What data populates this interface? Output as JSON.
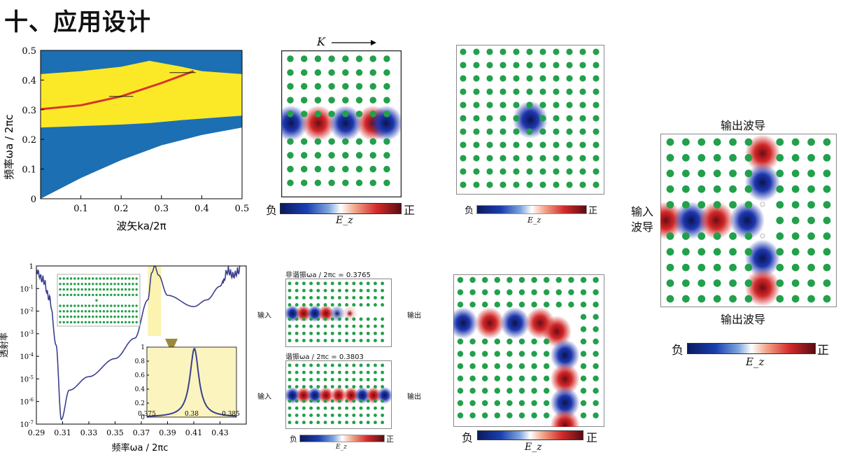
{
  "page": {
    "title": "十、应用设计"
  },
  "band_chart": {
    "type": "area",
    "xlabel": "波矢ka/2π",
    "ylabel": "频率ωa / 2πc",
    "xlim": [
      0,
      0.5
    ],
    "ylim": [
      0,
      0.5
    ],
    "x_ticks": [
      "0.1",
      "0.2",
      "0.3",
      "0.4",
      "0.5"
    ],
    "y_ticks": [
      "0",
      "0.1",
      "0.2",
      "0.3",
      "0.4",
      "0.5"
    ],
    "bandgap_band": {
      "x": [
        0,
        0.1,
        0.2,
        0.27,
        0.35,
        0.4,
        0.5
      ],
      "lower": [
        0.24,
        0.245,
        0.25,
        0.255,
        0.265,
        0.27,
        0.28
      ],
      "upper": [
        0.42,
        0.43,
        0.445,
        0.465,
        0.445,
        0.43,
        0.42
      ]
    },
    "light_cone": {
      "x": [
        0,
        0.1,
        0.2,
        0.3,
        0.4,
        0.5
      ],
      "y": [
        0,
        0.07,
        0.13,
        0.18,
        0.215,
        0.24
      ]
    },
    "defect_mode": {
      "x": [
        0,
        0.1,
        0.2,
        0.3,
        0.38
      ],
      "y": [
        0.302,
        0.315,
        0.345,
        0.39,
        0.43
      ]
    },
    "colors": {
      "gap": "#fbe928",
      "band": "#1c6fb2",
      "mode": "#d7352a"
    }
  },
  "transmission_chart": {
    "type": "line",
    "xlabel": "频率ωa / 2πc",
    "ylabel": "透射率",
    "xlim": [
      0.29,
      0.45
    ],
    "x_ticks": [
      "0.29",
      "0.31",
      "0.33",
      "0.35",
      "0.37",
      "0.39",
      "0.41",
      "0.43"
    ],
    "y_ticks": [
      "1",
      "10^-1",
      "10^-2",
      "10^-3",
      "10^-4",
      "10^-5",
      "10^-6",
      "10^-7"
    ],
    "series": [
      {
        "name": "透射率",
        "x": [
          0.29,
          0.295,
          0.3,
          0.305,
          0.309,
          0.315,
          0.33,
          0.35,
          0.365,
          0.375,
          0.378,
          0.3803,
          0.383,
          0.39,
          0.41,
          0.42,
          0.43,
          0.436,
          0.44,
          0.445
        ],
        "log10_y": [
          0,
          -0.4,
          -1.2,
          -3.5,
          -6.8,
          -5.5,
          -4.9,
          -4.1,
          -3.2,
          -1.5,
          -0.3,
          0,
          -0.4,
          -1.3,
          -1.8,
          -1.5,
          -0.9,
          0,
          -0.2,
          0
        ]
      }
    ],
    "inset": {
      "xlim": [
        0.375,
        0.385
      ],
      "ylim": [
        0,
        1
      ],
      "x_ticks": [
        "0.375",
        "0.38",
        "0.385"
      ],
      "y_ticks": [
        "0",
        "0.2",
        "0.4",
        "0.6",
        "0.8",
        "1"
      ],
      "peak_center": 0.3803,
      "peak_width": 0.0006
    }
  },
  "panels": {
    "waveguide": {
      "direction_label": "K",
      "colorbar": {
        "neg": "负",
        "pos": "正",
        "label": "E_z"
      }
    },
    "cavity": {
      "colorbar": {
        "neg": "负",
        "pos": "正",
        "label": "E_z"
      }
    },
    "resonant": {
      "top_title": "非谐振ωa / 2πc = 0.3765",
      "bottom_title": "谐振ωa / 2πc = 0.3803",
      "in_label": "输入",
      "out_label": "输出",
      "colorbar": {
        "neg": "负",
        "pos": "正",
        "label": "E_z"
      }
    },
    "bend": {
      "colorbar": {
        "neg": "负",
        "pos": "正",
        "label": "E_z"
      }
    },
    "splitter": {
      "top_label": "输出波导",
      "bottom_label": "输出波导",
      "input_label_line1": "输入",
      "input_label_line2": "波导",
      "colorbar": {
        "neg": "负",
        "pos": "正",
        "label": "E_z"
      }
    }
  }
}
